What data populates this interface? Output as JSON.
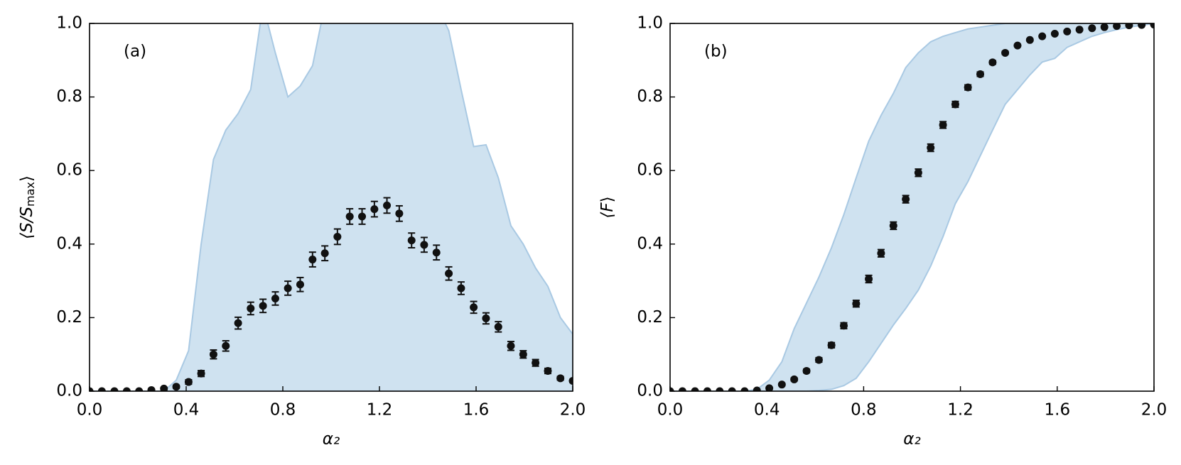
{
  "chart_data": [
    {
      "type": "scatter",
      "annotation": "(a)",
      "xlabel": "α₂",
      "ylabel": [
        "⟨S/S",
        "max",
        "⟩"
      ],
      "x": [
        0,
        0.051,
        0.103,
        0.154,
        0.205,
        0.256,
        0.308,
        0.359,
        0.41,
        0.462,
        0.513,
        0.564,
        0.615,
        0.667,
        0.718,
        0.769,
        0.821,
        0.872,
        0.923,
        0.974,
        1.026,
        1.077,
        1.128,
        1.179,
        1.231,
        1.282,
        1.333,
        1.385,
        1.436,
        1.487,
        1.538,
        1.59,
        1.641,
        1.692,
        1.744,
        1.795,
        1.846,
        1.897,
        1.949,
        2.0
      ],
      "values": [
        0,
        0,
        0,
        0,
        0,
        0.003,
        0.007,
        0.012,
        0.025,
        0.048,
        0.1,
        0.123,
        0.185,
        0.225,
        0.232,
        0.252,
        0.28,
        0.29,
        0.358,
        0.375,
        0.42,
        0.475,
        0.475,
        0.495,
        0.505,
        0.483,
        0.41,
        0.398,
        0.377,
        0.32,
        0.28,
        0.228,
        0.198,
        0.175,
        0.123,
        0.1,
        0.077,
        0.055,
        0.035,
        0.028
      ],
      "errors": [
        0,
        0,
        0,
        0,
        0,
        0.002,
        0.003,
        0.004,
        0.006,
        0.008,
        0.012,
        0.014,
        0.016,
        0.017,
        0.018,
        0.018,
        0.019,
        0.019,
        0.02,
        0.02,
        0.021,
        0.021,
        0.021,
        0.021,
        0.021,
        0.021,
        0.02,
        0.02,
        0.02,
        0.018,
        0.017,
        0.016,
        0.015,
        0.014,
        0.012,
        0.01,
        0.009,
        0.007,
        0.005,
        0.004
      ],
      "upper": [
        0,
        0,
        0,
        0,
        0,
        0,
        0,
        0.03,
        0.11,
        0.4,
        0.63,
        0.71,
        0.755,
        0.82,
        1.05,
        0.92,
        0.8,
        0.83,
        0.885,
        1.05,
        1.1,
        1.1,
        1.1,
        1.1,
        1.1,
        1.1,
        1.1,
        1.1,
        1.05,
        0.98,
        0.82,
        0.665,
        0.67,
        0.58,
        0.45,
        0.4,
        0.335,
        0.285,
        0.2,
        0.155
      ],
      "lower": [
        0,
        0,
        0,
        0,
        0,
        0,
        0,
        0,
        0,
        0,
        0,
        0,
        0,
        0,
        0,
        0,
        0,
        0,
        0,
        0,
        0,
        0,
        0,
        0,
        0,
        0,
        0,
        0,
        0,
        0,
        0,
        0,
        0,
        0,
        0,
        0,
        0,
        0,
        0,
        0
      ],
      "color": "#111111",
      "band_color": "#cfe2f0",
      "band_edge": "#a9c9e3",
      "xlim": [
        0,
        2
      ],
      "ylim": [
        0,
        1
      ],
      "xticks": [
        {
          "value": 0,
          "label": "0.0"
        },
        {
          "value": 0.4,
          "label": "0.4"
        },
        {
          "value": 0.8,
          "label": "0.8"
        },
        {
          "value": 1.2,
          "label": "1.2"
        },
        {
          "value": 1.6,
          "label": "1.6"
        },
        {
          "value": 2,
          "label": "2.0"
        }
      ],
      "yticks": [
        {
          "value": 0,
          "label": "0.0"
        },
        {
          "value": 0.2,
          "label": "0.2"
        },
        {
          "value": 0.4,
          "label": "0.4"
        },
        {
          "value": 0.6,
          "label": "0.6"
        },
        {
          "value": 0.8,
          "label": "0.8"
        },
        {
          "value": 1,
          "label": "1.0"
        }
      ]
    },
    {
      "type": "scatter",
      "annotation": "(b)",
      "xlabel": "α₂",
      "ylabel": [
        "⟨F",
        "",
        "⟩"
      ],
      "x": [
        0,
        0.051,
        0.103,
        0.154,
        0.205,
        0.256,
        0.308,
        0.359,
        0.41,
        0.462,
        0.513,
        0.564,
        0.615,
        0.667,
        0.718,
        0.769,
        0.821,
        0.872,
        0.923,
        0.974,
        1.026,
        1.077,
        1.128,
        1.179,
        1.231,
        1.282,
        1.333,
        1.385,
        1.436,
        1.487,
        1.538,
        1.59,
        1.641,
        1.692,
        1.744,
        1.795,
        1.846,
        1.897,
        1.949,
        2.0
      ],
      "values": [
        0,
        0,
        0,
        0,
        0,
        0,
        0,
        0.002,
        0.008,
        0.018,
        0.032,
        0.055,
        0.085,
        0.125,
        0.178,
        0.238,
        0.305,
        0.375,
        0.45,
        0.522,
        0.594,
        0.662,
        0.724,
        0.78,
        0.826,
        0.862,
        0.894,
        0.92,
        0.94,
        0.955,
        0.965,
        0.972,
        0.978,
        0.983,
        0.987,
        0.99,
        0.993,
        0.995,
        0.996,
        0.997
      ],
      "errors": [
        0,
        0,
        0,
        0,
        0,
        0,
        0,
        0.001,
        0.002,
        0.003,
        0.004,
        0.005,
        0.006,
        0.007,
        0.008,
        0.009,
        0.01,
        0.01,
        0.01,
        0.01,
        0.01,
        0.01,
        0.009,
        0.008,
        0.007,
        0.006,
        0.005,
        0.004,
        0.003,
        0.003,
        0.002,
        0.002,
        0.002,
        0.001,
        0.001,
        0.001,
        0.001,
        0.001,
        0.001,
        0.001
      ],
      "upper": [
        0,
        0,
        0,
        0,
        0,
        0,
        0,
        0.005,
        0.03,
        0.08,
        0.17,
        0.24,
        0.31,
        0.39,
        0.48,
        0.58,
        0.68,
        0.75,
        0.81,
        0.88,
        0.92,
        0.95,
        0.965,
        0.975,
        0.985,
        0.99,
        0.995,
        1,
        1,
        1,
        1,
        1,
        1,
        1,
        1,
        1,
        1,
        1,
        1,
        1
      ],
      "lower": [
        0,
        0,
        0,
        0,
        0,
        0,
        0,
        0,
        0,
        0,
        0,
        0,
        0.002,
        0.005,
        0.015,
        0.035,
        0.08,
        0.13,
        0.18,
        0.225,
        0.275,
        0.34,
        0.42,
        0.51,
        0.57,
        0.64,
        0.71,
        0.78,
        0.82,
        0.86,
        0.895,
        0.905,
        0.935,
        0.95,
        0.965,
        0.975,
        0.983,
        0.99,
        0.995,
        1
      ],
      "color": "#111111",
      "band_color": "#cfe2f0",
      "band_edge": "#a9c9e3",
      "xlim": [
        0,
        2
      ],
      "ylim": [
        0,
        1
      ],
      "xticks": [
        {
          "value": 0,
          "label": "0.0"
        },
        {
          "value": 0.4,
          "label": "0.4"
        },
        {
          "value": 0.8,
          "label": "0.8"
        },
        {
          "value": 1.2,
          "label": "1.2"
        },
        {
          "value": 1.6,
          "label": "1.6"
        },
        {
          "value": 2,
          "label": "2.0"
        }
      ],
      "yticks": [
        {
          "value": 0,
          "label": "0.0"
        },
        {
          "value": 0.2,
          "label": "0.2"
        },
        {
          "value": 0.4,
          "label": "0.4"
        },
        {
          "value": 0.6,
          "label": "0.6"
        },
        {
          "value": 0.8,
          "label": "0.8"
        },
        {
          "value": 1,
          "label": "1.0"
        }
      ]
    }
  ]
}
